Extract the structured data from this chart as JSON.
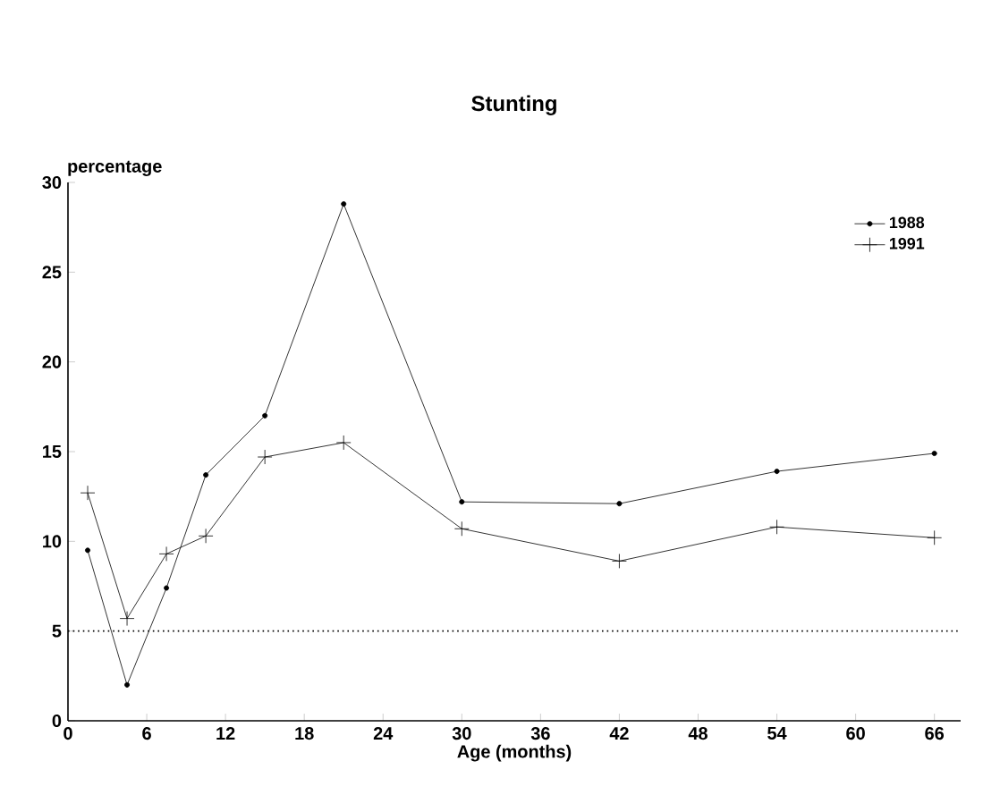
{
  "chart_data": {
    "type": "line",
    "title": "Stunting",
    "xlabel": "Age (months)",
    "ylabel": "percentage",
    "x": [
      1.5,
      4.5,
      7.5,
      10.5,
      15,
      21,
      30,
      42,
      54,
      66
    ],
    "series": [
      {
        "name": "1988",
        "color": "#000000",
        "marker": "circle",
        "values": [
          9.5,
          2.0,
          7.4,
          13.7,
          17.0,
          28.8,
          12.2,
          12.1,
          13.9,
          14.9
        ]
      },
      {
        "name": "1991",
        "color": "#000000",
        "marker": "cross",
        "values": [
          12.7,
          5.7,
          9.3,
          10.3,
          14.7,
          15.5,
          10.7,
          8.9,
          10.8,
          10.2
        ]
      }
    ],
    "xlim": [
      0,
      68
    ],
    "xticks": [
      0,
      6,
      12,
      18,
      24,
      30,
      36,
      42,
      48,
      54,
      60,
      66
    ],
    "ylim": [
      0,
      30
    ],
    "yticks": [
      0,
      5,
      10,
      15,
      20,
      25,
      30
    ],
    "ref_lines": [
      {
        "axis": "y",
        "value": 5,
        "color": "#000000",
        "line_style": "dotted"
      }
    ],
    "legend": "top right",
    "grid": false
  }
}
